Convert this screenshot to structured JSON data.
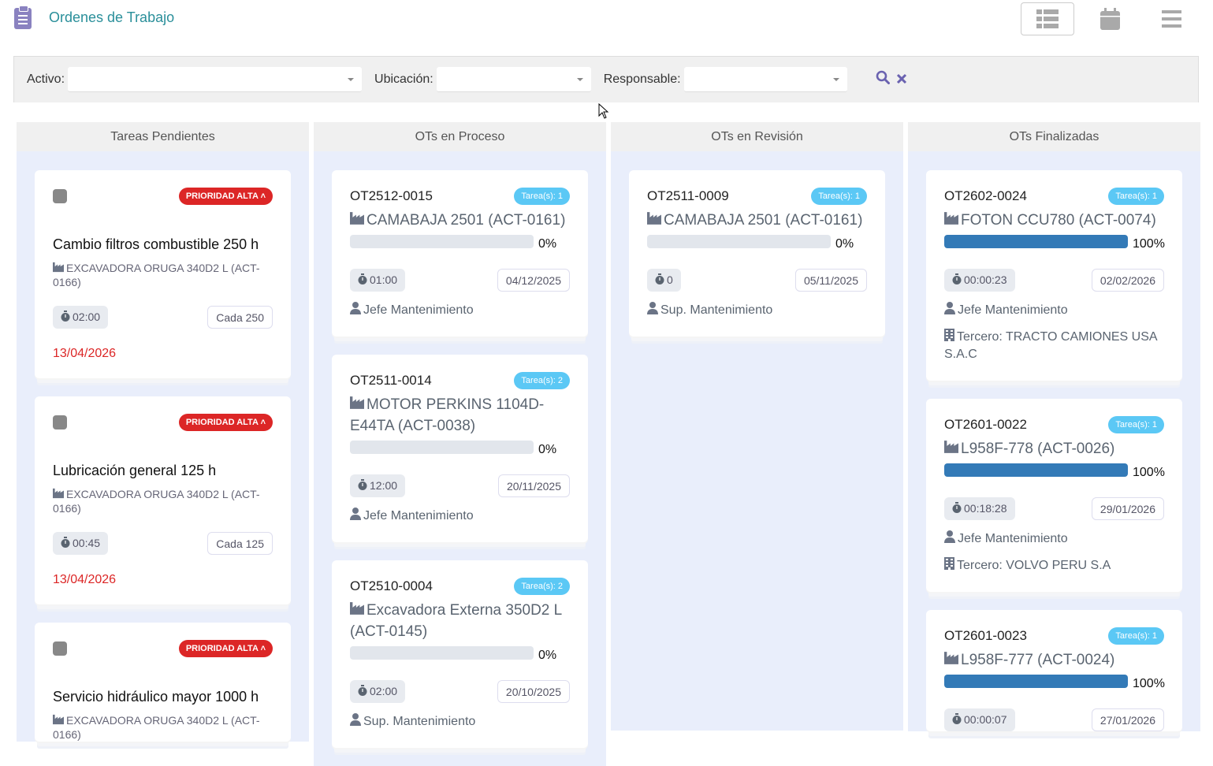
{
  "header": {
    "title": "Ordenes de Trabajo",
    "icons": [
      "clipboard-list-icon",
      "list-view-icon",
      "calendar-icon",
      "menu-icon"
    ]
  },
  "filters": {
    "activo_label": "Activo:",
    "activo_value": "",
    "ubicacion_label": "Ubicación:",
    "ubicacion_value": "",
    "responsable_label": "Responsable:",
    "responsable_value": ""
  },
  "colors": {
    "accent": "#2a8f9a",
    "priority": "#dc2626",
    "tasks_badge": "#5bc8f5",
    "progress": "#337ab7"
  },
  "columns": [
    {
      "title": "Tareas Pendientes",
      "type": "pending",
      "cards": [
        {
          "priority": "PRIORIDAD ALTA",
          "title": "Cambio filtros combustible 250 h",
          "asset": "EXCAVADORA ORUGA 340D2 L (ACT-0166)",
          "duration": "02:00",
          "frequency": "Cada 250",
          "date": "13/04/2026"
        },
        {
          "priority": "PRIORIDAD ALTA",
          "title": "Lubricación general 125 h",
          "asset": "EXCAVADORA ORUGA 340D2 L (ACT-0166)",
          "duration": "00:45",
          "frequency": "Cada 125",
          "date": "13/04/2026"
        },
        {
          "priority": "PRIORIDAD ALTA",
          "title": "Servicio hidráulico mayor 1000 h",
          "asset": "EXCAVADORA ORUGA 340D2 L (ACT-0166)",
          "duration": "",
          "frequency": "",
          "date": ""
        }
      ]
    },
    {
      "title": "OTs en Proceso",
      "type": "ot",
      "cards": [
        {
          "code": "OT2512-0015",
          "tasks": "Tarea(s): 1",
          "asset": "CAMABAJA 2501 (ACT-0161)",
          "progress": 0,
          "progress_label": "0%",
          "duration": "01:00",
          "date": "04/12/2025",
          "responsible": "Jefe Mantenimiento"
        },
        {
          "code": "OT2511-0014",
          "tasks": "Tarea(s): 2",
          "asset": "MOTOR PERKINS 1104D-E44TA (ACT-0038)",
          "progress": 0,
          "progress_label": "0%",
          "duration": "12:00",
          "date": "20/11/2025",
          "responsible": "Jefe Mantenimiento"
        },
        {
          "code": "OT2510-0004",
          "tasks": "Tarea(s): 2",
          "asset": "Excavadora Externa 350D2 L (ACT-0145)",
          "progress": 0,
          "progress_label": "0%",
          "duration": "02:00",
          "date": "20/10/2025",
          "responsible": "Sup. Mantenimiento"
        }
      ]
    },
    {
      "title": "OTs en Revisión",
      "type": "ot",
      "cards": [
        {
          "code": "OT2511-0009",
          "tasks": "Tarea(s): 1",
          "asset": "CAMABAJA 2501 (ACT-0161)",
          "progress": 0,
          "progress_label": "0%",
          "duration": "0",
          "date": "05/11/2025",
          "responsible": "Sup. Mantenimiento"
        }
      ]
    },
    {
      "title": "OTs Finalizadas",
      "type": "ot",
      "cards": [
        {
          "code": "OT2602-0024",
          "tasks": "Tarea(s): 1",
          "asset": "FOTON CCU780 (ACT-0074)",
          "progress": 100,
          "progress_label": "100%",
          "duration": "00:00:23",
          "date": "02/02/2026",
          "responsible": "Jefe Mantenimiento",
          "third_party": "Tercero: TRACTO CAMIONES USA S.A.C"
        },
        {
          "code": "OT2601-0022",
          "tasks": "Tarea(s): 1",
          "asset": "L958F-778 (ACT-0026)",
          "progress": 100,
          "progress_label": "100%",
          "duration": "00:18:28",
          "date": "29/01/2026",
          "responsible": "Jefe Mantenimiento",
          "third_party": "Tercero: VOLVO PERU S.A"
        },
        {
          "code": "OT2601-0023",
          "tasks": "Tarea(s): 1",
          "asset": "L958F-777 (ACT-0024)",
          "progress": 100,
          "progress_label": "100%",
          "duration": "00:00:07",
          "date": "27/01/2026",
          "responsible": "",
          "third_party": ""
        }
      ]
    }
  ]
}
